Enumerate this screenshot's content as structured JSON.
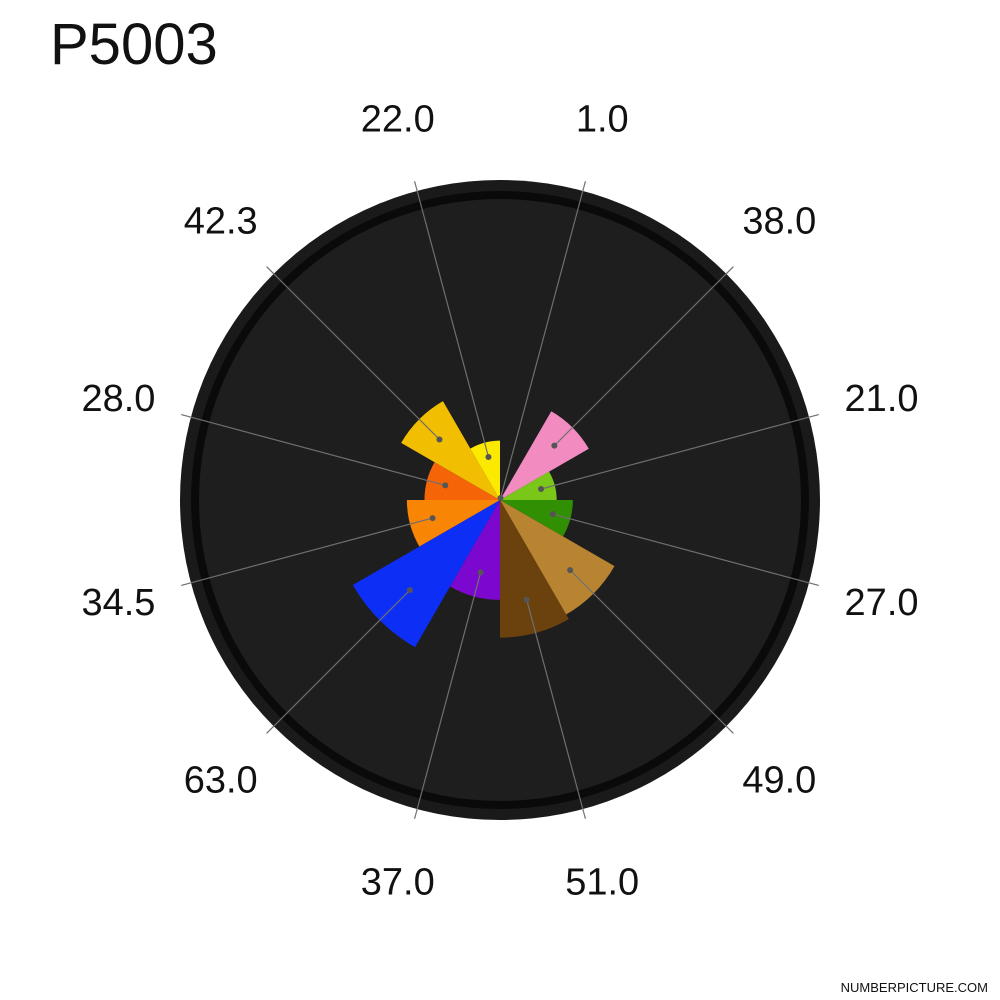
{
  "chart_data": {
    "type": "polar-bar",
    "title": "P5003",
    "colors": {
      "background_outer": "#1a1a1a",
      "ring": "#0a0a0a",
      "background_inner": "#1e1e1e",
      "leader_line": "#6f6f6f"
    },
    "max_value": 63.0,
    "start_angle_deg": 0,
    "sector_width_deg": 30,
    "segments": [
      {
        "value": 1.0,
        "label": "1.0",
        "color": "#f18bc0"
      },
      {
        "value": 38.0,
        "label": "38.0",
        "color": "#f18bc0"
      },
      {
        "value": 21.0,
        "label": "21.0",
        "color": "#7ac71a"
      },
      {
        "value": 27.0,
        "label": "27.0",
        "color": "#318f04"
      },
      {
        "value": 49.0,
        "label": "49.0",
        "color": "#b98431"
      },
      {
        "value": 51.0,
        "label": "51.0",
        "color": "#6b420e"
      },
      {
        "value": 37.0,
        "label": "37.0",
        "color": "#7c08cf"
      },
      {
        "value": 63.0,
        "label": "63.0",
        "color": "#0d2ef5"
      },
      {
        "value": 34.5,
        "label": "34.5",
        "color": "#f98505"
      },
      {
        "value": 28.0,
        "label": "28.0",
        "color": "#f56508"
      },
      {
        "value": 42.3,
        "label": "42.3",
        "color": "#f1be02"
      },
      {
        "value": 22.0,
        "label": "22.0",
        "color": "#fbe900"
      }
    ]
  },
  "footer": {
    "brand": "NUMBERPICTURE.COM"
  }
}
